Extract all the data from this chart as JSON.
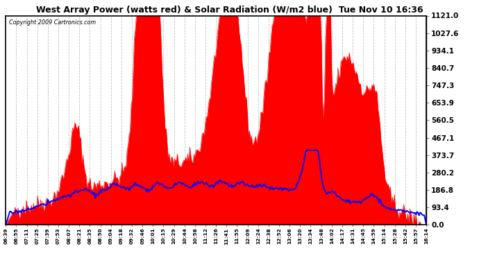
{
  "title": "West Array Power (watts red) & Solar Radiation (W/m2 blue)  Tue Nov 10 16:36",
  "copyright": "Copyright 2009 Cartronics.com",
  "yticks": [
    0.0,
    93.4,
    186.8,
    280.2,
    373.7,
    467.1,
    560.5,
    653.9,
    747.3,
    840.7,
    934.1,
    1027.6,
    1121.0
  ],
  "ymax": 1121.0,
  "bg_color": "#ffffff",
  "red_color": "#ff0000",
  "blue_color": "#0000ff",
  "grid_color": "#bbbbbb",
  "xtick_labels": [
    "06:39",
    "06:55",
    "07:11",
    "07:25",
    "07:39",
    "07:53",
    "08:07",
    "08:21",
    "08:35",
    "08:50",
    "09:04",
    "09:18",
    "09:32",
    "09:46",
    "10:01",
    "10:15",
    "10:29",
    "10:44",
    "10:58",
    "11:12",
    "11:26",
    "11:41",
    "11:55",
    "12:09",
    "12:24",
    "12:38",
    "12:52",
    "13:06",
    "13:20",
    "13:34",
    "13:48",
    "14:02",
    "14:17",
    "14:31",
    "14:45",
    "14:59",
    "15:14",
    "15:28",
    "15:42",
    "15:57",
    "16:14"
  ],
  "n_points": 410
}
